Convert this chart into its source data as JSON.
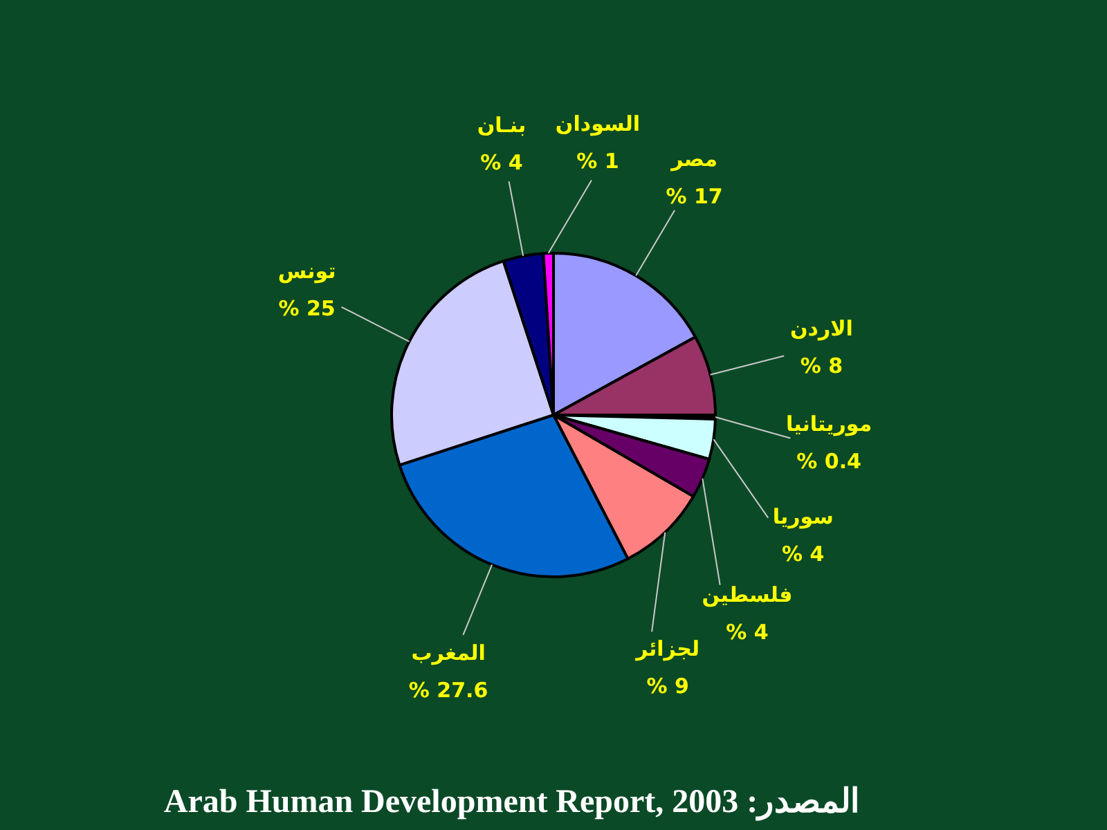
{
  "chart_data": {
    "type": "pie",
    "categories": [
      "مصر",
      "الاردن",
      "موريتانيا",
      "سوريا",
      "فلسطين",
      "لجزائر",
      "المغرب",
      "تونس",
      "بنـان",
      "السودان"
    ],
    "values": [
      17,
      8,
      0.4,
      4,
      4,
      9,
      27.6,
      25,
      4,
      1
    ],
    "colors": [
      "#9999ff",
      "#993366",
      "#000000",
      "#ccffff",
      "#660066",
      "#ff8080",
      "#0066cc",
      "#ccccff",
      "#000080",
      "#ff00ff"
    ],
    "value_labels": [
      "% 17",
      "% 8",
      "% 0.4",
      "% 4",
      "% 4",
      "% 9",
      "% 27.6",
      "% 25",
      "% 4",
      "% 1"
    ],
    "annotations": [
      "Arab Human Development Report, 2003 :المصدر"
    ]
  }
}
